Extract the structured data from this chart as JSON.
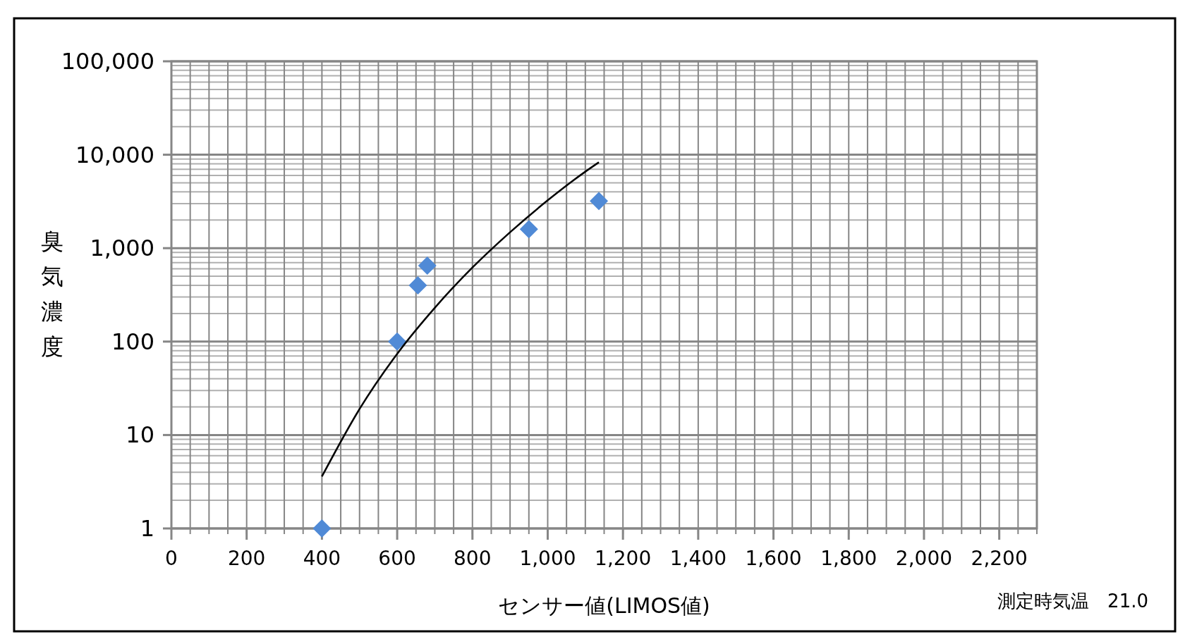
{
  "chart_data": {
    "type": "scatter",
    "xlabel": "センサー値(LIMOS値)",
    "ylabel": "臭気濃度",
    "annotations": [
      "測定時気温　21.0"
    ],
    "log": "y",
    "grid": true,
    "xlim": [
      0,
      2300
    ],
    "xticks": [
      0,
      200,
      400,
      600,
      800,
      {
        "value": 1000,
        "label": "1,000"
      },
      {
        "value": 1200,
        "label": "1,200"
      },
      {
        "value": 1400,
        "label": "1,400"
      },
      {
        "value": 1600,
        "label": "1,600"
      },
      {
        "value": 1800,
        "label": "1,800"
      },
      {
        "value": 2000,
        "label": "2,000"
      },
      {
        "value": 2200,
        "label": "2,200"
      }
    ],
    "ylim": [
      1,
      100000
    ],
    "yticks": [
      1,
      10,
      100,
      {
        "value": 1000,
        "label": "1,000"
      },
      {
        "value": 10000,
        "label": "10,000"
      },
      {
        "value": 100000,
        "label": "100,000"
      }
    ],
    "series": [
      {
        "color": "#508ad6",
        "marker": "diamond",
        "x": [
          400,
          600,
          655,
          680,
          950,
          1136
        ],
        "values": [
          1,
          100,
          400,
          650,
          1600,
          3200
        ]
      },
      {
        "type": "line",
        "color": "#000000",
        "marker": "none",
        "line_style": "solid",
        "x": [
          400,
          500,
          600,
          700,
          800,
          900,
          1000,
          1100,
          1136
        ],
        "values": [
          3.6,
          19,
          74,
          230,
          620,
          1480,
          3250,
          6590,
          8300
        ]
      }
    ]
  }
}
